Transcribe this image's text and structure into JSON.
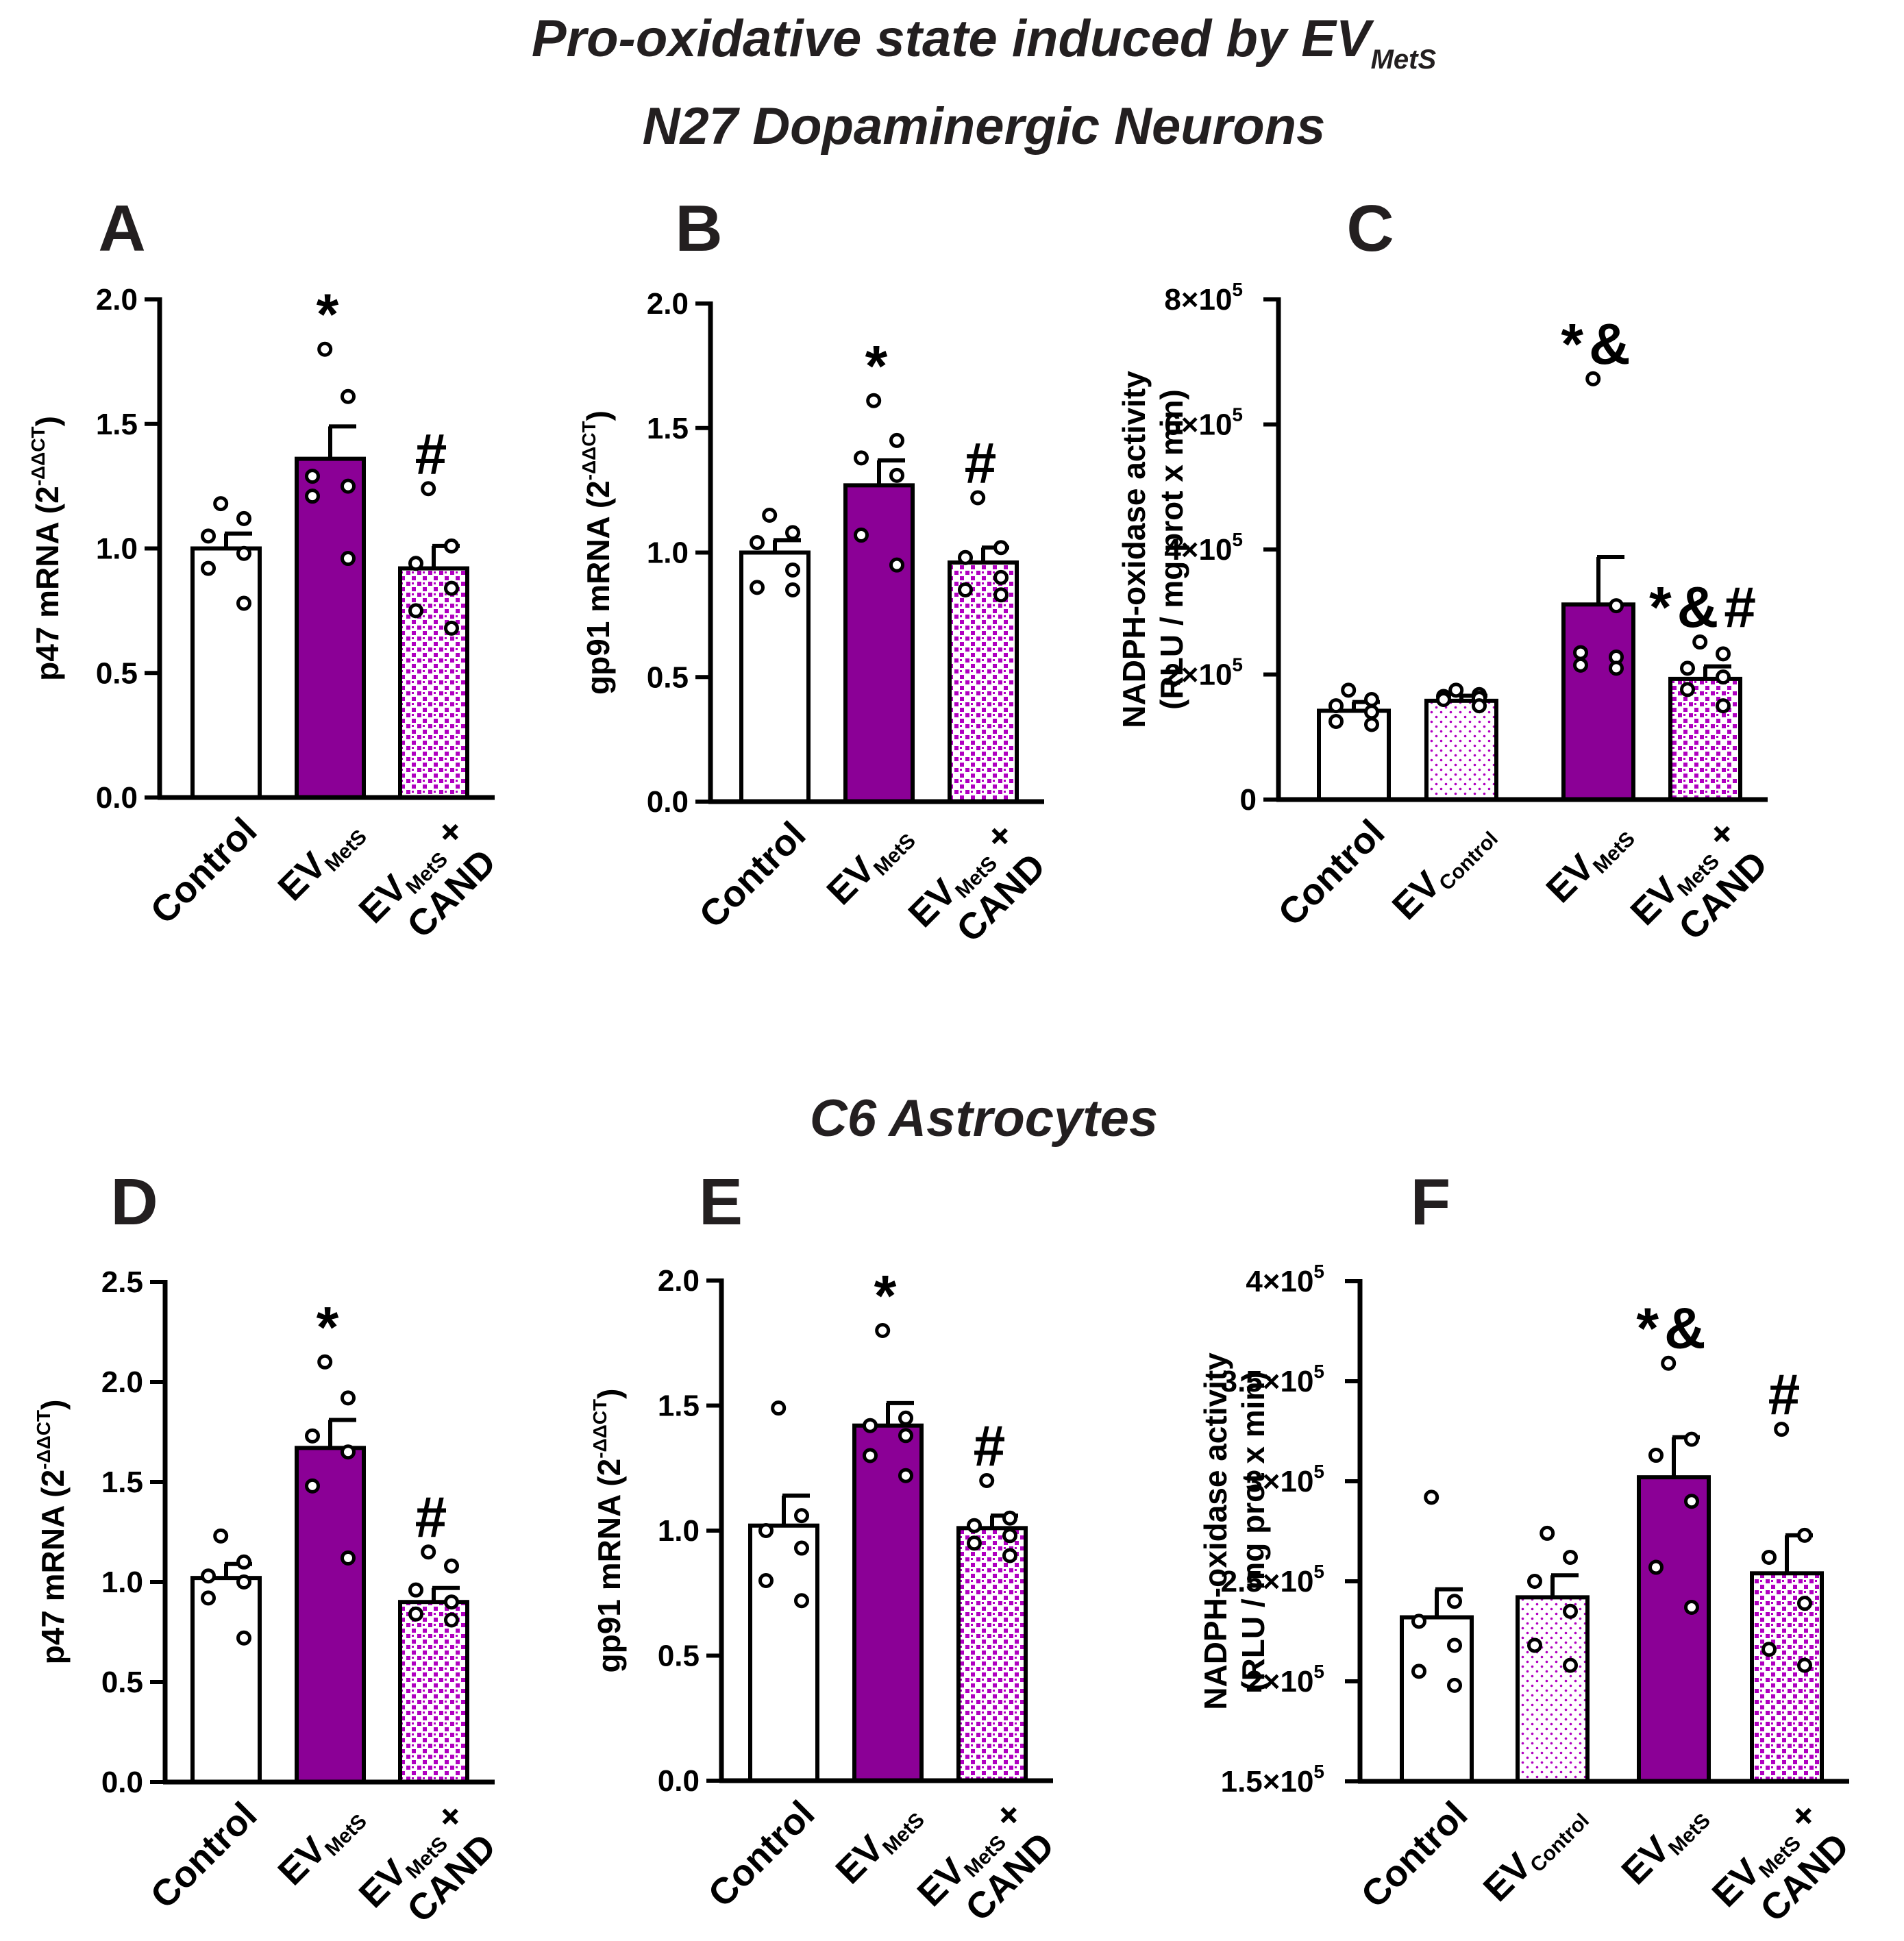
{
  "figure": {
    "title": "Pro-oxidative state induced by EV",
    "title_subscript": "MetS",
    "section_neurons": "N27 Dopaminergic Neurons",
    "section_astrocytes": "C6 Astrocytes"
  },
  "colors": {
    "purple": "#8b0096",
    "pattern_purple": "#b000c0",
    "text": "#000000",
    "title_text": "#231f20"
  },
  "chart_data": [
    {
      "panel": "A",
      "type": "bar",
      "ylabel": "p47 mRNA (2",
      "ylabel_sup": "-ΔΔCT",
      "ylabel_close": ")",
      "ylim": [
        0,
        2.0
      ],
      "yticks": [
        "0.0",
        "0.5",
        "1.0",
        "1.5",
        "2.0"
      ],
      "ytick_values": [
        0,
        0.5,
        1.0,
        1.5,
        2.0
      ],
      "categories": [
        {
          "main": "Control",
          "sub": "",
          "suffix": "",
          "line2": "",
          "fill": "white"
        },
        {
          "main": "EV",
          "sub": "MetS",
          "suffix": "",
          "line2": "",
          "fill": "solid"
        },
        {
          "main": "EV",
          "sub": "MetS",
          "suffix": " +",
          "line2": "CAND",
          "fill": "pattern"
        }
      ],
      "values": [
        1.0,
        1.36,
        0.92
      ],
      "sem": [
        0.06,
        0.13,
        0.09
      ],
      "points": [
        [
          1.18,
          1.12,
          1.05,
          0.98,
          0.92,
          0.78
        ],
        [
          1.8,
          1.61,
          1.29,
          1.25,
          1.21,
          0.96
        ],
        [
          1.24,
          1.01,
          0.94,
          0.84,
          0.75,
          0.68
        ]
      ],
      "annotations": [
        "",
        "*",
        "#"
      ]
    },
    {
      "panel": "B",
      "type": "bar",
      "ylabel": "gp91 mRNA (2",
      "ylabel_sup": "-ΔΔCT",
      "ylabel_close": ")",
      "ylim": [
        0,
        2.0
      ],
      "yticks": [
        "0.0",
        "0.5",
        "1.0",
        "1.5",
        "2.0"
      ],
      "ytick_values": [
        0,
        0.5,
        1.0,
        1.5,
        2.0
      ],
      "categories": [
        {
          "main": "Control",
          "sub": "",
          "suffix": "",
          "line2": "",
          "fill": "white"
        },
        {
          "main": "EV",
          "sub": "MetS",
          "suffix": "",
          "line2": "",
          "fill": "solid"
        },
        {
          "main": "EV",
          "sub": "MetS",
          "suffix": " +",
          "line2": "CAND",
          "fill": "pattern"
        }
      ],
      "values": [
        1.0,
        1.27,
        0.96
      ],
      "sem": [
        0.05,
        0.1,
        0.06
      ],
      "points": [
        [
          1.15,
          1.08,
          1.04,
          0.93,
          0.86,
          0.85
        ],
        [
          1.61,
          1.45,
          1.38,
          1.31,
          1.07,
          0.95
        ],
        [
          1.22,
          1.02,
          0.98,
          0.9,
          0.85,
          0.83
        ]
      ],
      "annotations": [
        "",
        "*",
        "#"
      ]
    },
    {
      "panel": "C",
      "type": "bar",
      "ylabel": "NADPH-oxidase activity",
      "ylabel2": "(RLU / mg prot x min)",
      "ylim": [
        0,
        800000
      ],
      "yticks": [
        "0",
        "2×10",
        "4×10",
        "6×10",
        "8×10"
      ],
      "ytick_exp": [
        "",
        "5",
        "5",
        "5",
        "5"
      ],
      "ytick_values": [
        0,
        200000,
        400000,
        600000,
        800000
      ],
      "categories": [
        {
          "main": "Control",
          "sub": "",
          "suffix": "",
          "line2": "",
          "fill": "white"
        },
        {
          "main": "EV",
          "sub": "Control",
          "suffix": "",
          "line2": "",
          "fill": "dots"
        },
        {
          "main": "EV",
          "sub": "MetS",
          "suffix": "",
          "line2": "",
          "fill": "solid"
        },
        {
          "main": "EV",
          "sub": "MetS",
          "suffix": " +",
          "line2": "CAND",
          "fill": "pattern"
        }
      ],
      "values": [
        142000,
        158000,
        312000,
        193000
      ],
      "sem": [
        14000,
        8000,
        76000,
        20000
      ],
      "points": [
        [
          175000,
          160000,
          150000,
          140000,
          125000,
          120000
        ],
        [
          175000,
          168000,
          165000,
          162000,
          160000,
          150000
        ],
        [
          673000,
          310000,
          235000,
          228000,
          215000,
          210000
        ],
        [
          252000,
          233000,
          210000,
          196000,
          176000,
          150000
        ]
      ],
      "annotations": [
        "",
        "",
        "*&",
        "*&#"
      ]
    },
    {
      "panel": "D",
      "type": "bar",
      "ylabel": "p47 mRNA (2",
      "ylabel_sup": "-ΔΔCT",
      "ylabel_close": ")",
      "ylim": [
        0,
        2.5
      ],
      "yticks": [
        "0.0",
        "0.5",
        "1.0",
        "1.5",
        "2.0",
        "2.5"
      ],
      "ytick_values": [
        0,
        0.5,
        1.0,
        1.5,
        2.0,
        2.5
      ],
      "categories": [
        {
          "main": "Control",
          "sub": "",
          "suffix": "",
          "line2": "",
          "fill": "white"
        },
        {
          "main": "EV",
          "sub": "MetS",
          "suffix": "",
          "line2": "",
          "fill": "solid"
        },
        {
          "main": "EV",
          "sub": "MetS",
          "suffix": " +",
          "line2": "CAND",
          "fill": "pattern"
        }
      ],
      "values": [
        1.02,
        1.67,
        0.9
      ],
      "sem": [
        0.07,
        0.14,
        0.07
      ],
      "points": [
        [
          1.23,
          1.1,
          1.03,
          1.0,
          0.92,
          0.72
        ],
        [
          2.1,
          1.92,
          1.73,
          1.65,
          1.48,
          1.12
        ],
        [
          1.15,
          1.08,
          0.96,
          0.9,
          0.84,
          0.81
        ]
      ],
      "annotations": [
        "",
        "*",
        "#"
      ]
    },
    {
      "panel": "E",
      "type": "bar",
      "ylabel": "gp91 mRNA (2",
      "ylabel_sup": "-ΔΔCT",
      "ylabel_close": ")",
      "ylim": [
        0,
        2.0
      ],
      "yticks": [
        "0.0",
        "0.5",
        "1.0",
        "1.5",
        "2.0"
      ],
      "ytick_values": [
        0,
        0.5,
        1.0,
        1.5,
        2.0
      ],
      "categories": [
        {
          "main": "Control",
          "sub": "",
          "suffix": "",
          "line2": "",
          "fill": "white"
        },
        {
          "main": "EV",
          "sub": "MetS",
          "suffix": "",
          "line2": "",
          "fill": "solid"
        },
        {
          "main": "EV",
          "sub": "MetS",
          "suffix": " +",
          "line2": "CAND",
          "fill": "pattern"
        }
      ],
      "values": [
        1.02,
        1.42,
        1.01
      ],
      "sem": [
        0.12,
        0.09,
        0.05
      ],
      "points": [
        [
          1.49,
          1.06,
          1.0,
          0.93,
          0.8,
          0.72
        ],
        [
          1.8,
          1.45,
          1.42,
          1.38,
          1.3,
          1.22
        ],
        [
          1.2,
          1.05,
          1.02,
          0.98,
          0.95,
          0.9
        ]
      ],
      "annotations": [
        "",
        "*",
        "#"
      ]
    },
    {
      "panel": "F",
      "type": "bar",
      "ylabel": "NADPH-oxidase activity",
      "ylabel2": "(RLU / mg prot x min)",
      "ylim": [
        150000,
        400000
      ],
      "yticks": [
        "1.5×10",
        "2×10",
        "2.5×10",
        "3×10",
        "3.5×10",
        "4×10"
      ],
      "ytick_exp": [
        "5",
        "5",
        "5",
        "5",
        "5",
        "5"
      ],
      "ytick_values": [
        150000,
        200000,
        250000,
        300000,
        350000,
        400000
      ],
      "categories": [
        {
          "main": "Control",
          "sub": "",
          "suffix": "",
          "line2": "",
          "fill": "white"
        },
        {
          "main": "EV",
          "sub": "Control",
          "suffix": "",
          "line2": "",
          "fill": "dots"
        },
        {
          "main": "EV",
          "sub": "MetS",
          "suffix": "",
          "line2": "",
          "fill": "solid"
        },
        {
          "main": "EV",
          "sub": "MetS",
          "suffix": " +",
          "line2": "CAND",
          "fill": "pattern"
        }
      ],
      "values": [
        232000,
        242000,
        302000,
        254000
      ],
      "sem": [
        14000,
        11000,
        20000,
        19000
      ],
      "points": [
        [
          292000,
          240000,
          230000,
          218000,
          205000,
          198000
        ],
        [
          274000,
          262000,
          250000,
          235000,
          218000,
          208000
        ],
        [
          359000,
          321000,
          313000,
          290000,
          257000,
          237000
        ],
        [
          326000,
          273000,
          262000,
          239000,
          216000,
          208000
        ]
      ],
      "annotations": [
        "",
        "",
        "*&",
        "#"
      ]
    }
  ]
}
